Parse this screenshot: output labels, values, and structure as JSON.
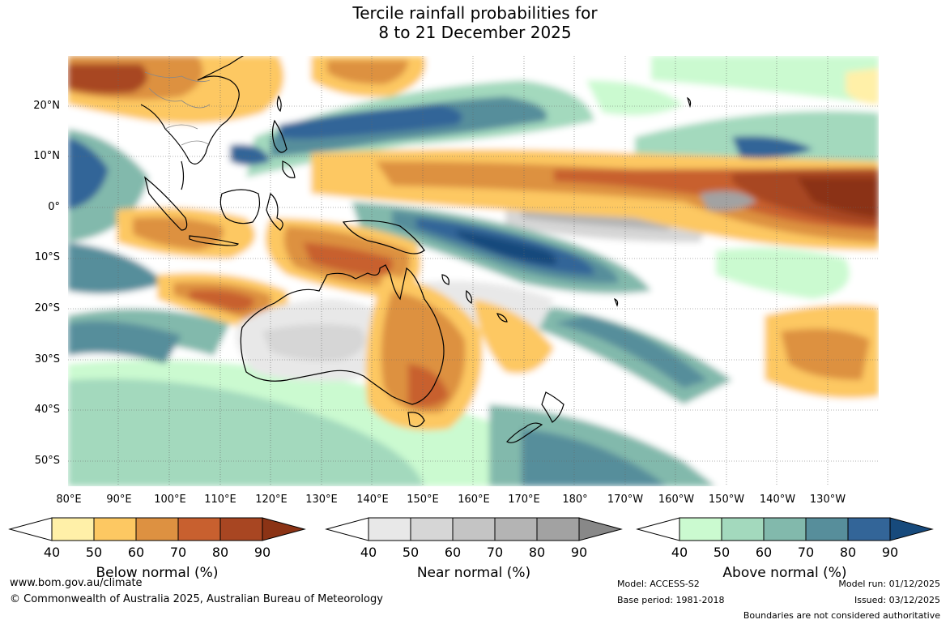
{
  "title_line1": "Tercile rainfall probabilities for",
  "title_line2": "8 to 21 December 2025",
  "lat_labels": [
    "20°N",
    "10°N",
    "0°",
    "10°S",
    "20°S",
    "30°S",
    "40°S",
    "50°S"
  ],
  "lon_labels": [
    "80°E",
    "90°E",
    "100°E",
    "110°E",
    "120°E",
    "130°E",
    "140°E",
    "150°E",
    "160°E",
    "170°E",
    "180°",
    "170°W",
    "160°W",
    "150°W",
    "140°W",
    "130°W"
  ],
  "colorbars": [
    {
      "title": "Below normal (%)",
      "ticks": [
        "40",
        "50",
        "60",
        "70",
        "80",
        "90"
      ],
      "colors": [
        "#fff0a8",
        "#fdc862",
        "#dd9141",
        "#c8602f",
        "#a84622",
        "#8b3315"
      ]
    },
    {
      "title": "Near normal (%)",
      "ticks": [
        "40",
        "50",
        "60",
        "70",
        "80",
        "90"
      ],
      "colors": [
        "#e8e8e8",
        "#d6d6d6",
        "#c4c4c4",
        "#b4b4b4",
        "#a2a2a2",
        "#888888"
      ]
    },
    {
      "title": "Above normal (%)",
      "ticks": [
        "40",
        "50",
        "60",
        "70",
        "80",
        "90"
      ],
      "colors": [
        "#cbfad0",
        "#a3d9bd",
        "#82b9ac",
        "#578e9b",
        "#336598",
        "#174a7c"
      ]
    }
  ],
  "footer": {
    "website": "www.bom.gov.au/climate",
    "copyright": "© Commonwealth of Australia 2025, Australian Bureau of Meteorology",
    "model": "Model: ACCESS-S2",
    "base_period": "Base period: 1981-2018",
    "model_run": "Model run: 01/12/2025",
    "issued": "Issued: 03/12/2025",
    "disclaimer": "Boundaries are not considered authoritative"
  }
}
